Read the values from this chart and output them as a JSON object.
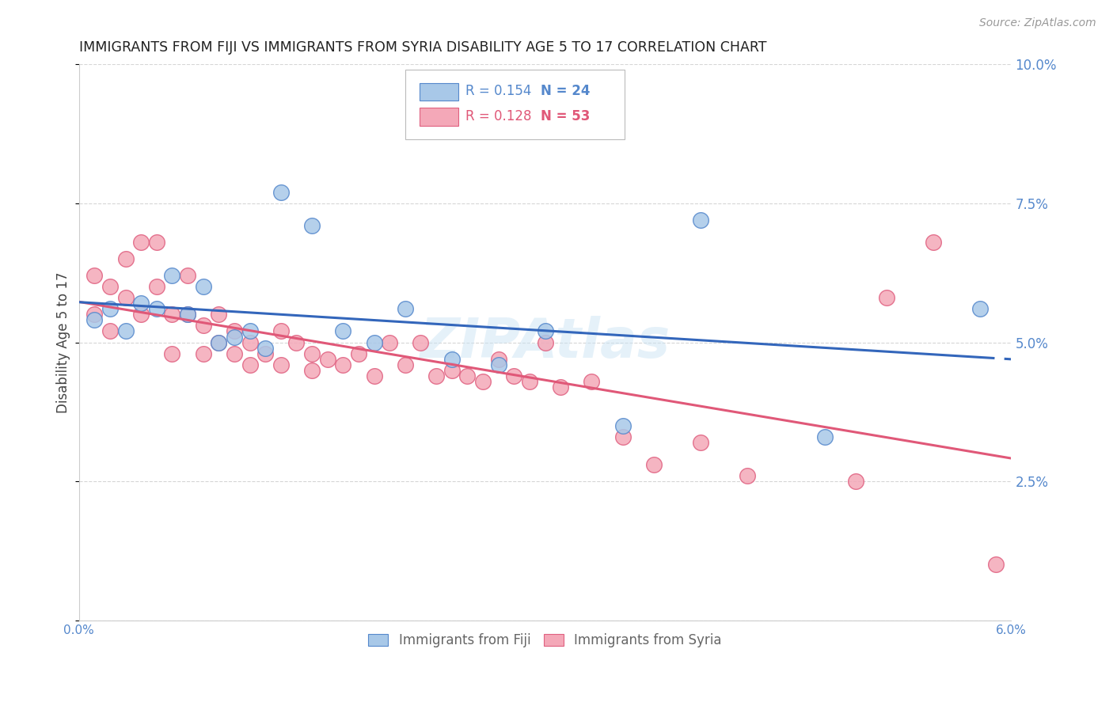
{
  "title": "IMMIGRANTS FROM FIJI VS IMMIGRANTS FROM SYRIA DISABILITY AGE 5 TO 17 CORRELATION CHART",
  "source": "Source: ZipAtlas.com",
  "ylabel": "Disability Age 5 to 17",
  "xmin": 0.0,
  "xmax": 0.06,
  "ymin": 0.0,
  "ymax": 0.1,
  "yticks": [
    0.0,
    0.025,
    0.05,
    0.075,
    0.1
  ],
  "ytick_labels": [
    "",
    "2.5%",
    "5.0%",
    "7.5%",
    "10.0%"
  ],
  "xticks": [
    0.0,
    0.01,
    0.02,
    0.03,
    0.04,
    0.05,
    0.06
  ],
  "xtick_labels": [
    "0.0%",
    "",
    "",
    "",
    "",
    "",
    "6.0%"
  ],
  "fiji_color": "#a8c8e8",
  "syria_color": "#f4a8b8",
  "fiji_edge_color": "#5588cc",
  "syria_edge_color": "#e06080",
  "trend_fiji_color": "#3366bb",
  "trend_syria_color": "#e05878",
  "legend_fiji_label": "Immigrants from Fiji",
  "legend_syria_label": "Immigrants from Syria",
  "fiji_R": 0.154,
  "fiji_N": 24,
  "syria_R": 0.128,
  "syria_N": 53,
  "fiji_x": [
    0.001,
    0.002,
    0.003,
    0.004,
    0.005,
    0.006,
    0.007,
    0.008,
    0.009,
    0.01,
    0.011,
    0.012,
    0.013,
    0.015,
    0.017,
    0.019,
    0.021,
    0.024,
    0.027,
    0.03,
    0.035,
    0.04,
    0.048,
    0.058
  ],
  "fiji_y": [
    0.054,
    0.056,
    0.052,
    0.057,
    0.056,
    0.062,
    0.055,
    0.06,
    0.05,
    0.051,
    0.052,
    0.049,
    0.077,
    0.071,
    0.052,
    0.05,
    0.056,
    0.047,
    0.046,
    0.052,
    0.035,
    0.072,
    0.033,
    0.056
  ],
  "syria_x": [
    0.001,
    0.001,
    0.002,
    0.002,
    0.003,
    0.003,
    0.004,
    0.004,
    0.005,
    0.005,
    0.006,
    0.006,
    0.007,
    0.007,
    0.008,
    0.008,
    0.009,
    0.009,
    0.01,
    0.01,
    0.011,
    0.011,
    0.012,
    0.013,
    0.013,
    0.014,
    0.015,
    0.015,
    0.016,
    0.017,
    0.018,
    0.019,
    0.02,
    0.021,
    0.022,
    0.023,
    0.024,
    0.025,
    0.026,
    0.027,
    0.028,
    0.029,
    0.03,
    0.031,
    0.033,
    0.035,
    0.037,
    0.04,
    0.043,
    0.05,
    0.052,
    0.055,
    0.059
  ],
  "syria_y": [
    0.055,
    0.062,
    0.06,
    0.052,
    0.065,
    0.058,
    0.068,
    0.055,
    0.068,
    0.06,
    0.055,
    0.048,
    0.055,
    0.062,
    0.053,
    0.048,
    0.055,
    0.05,
    0.052,
    0.048,
    0.05,
    0.046,
    0.048,
    0.052,
    0.046,
    0.05,
    0.048,
    0.045,
    0.047,
    0.046,
    0.048,
    0.044,
    0.05,
    0.046,
    0.05,
    0.044,
    0.045,
    0.044,
    0.043,
    0.047,
    0.044,
    0.043,
    0.05,
    0.042,
    0.043,
    0.033,
    0.028,
    0.032,
    0.026,
    0.025,
    0.058,
    0.068,
    0.01
  ],
  "watermark": "ZIPAtlas",
  "background_color": "#ffffff",
  "grid_color": "#cccccc"
}
